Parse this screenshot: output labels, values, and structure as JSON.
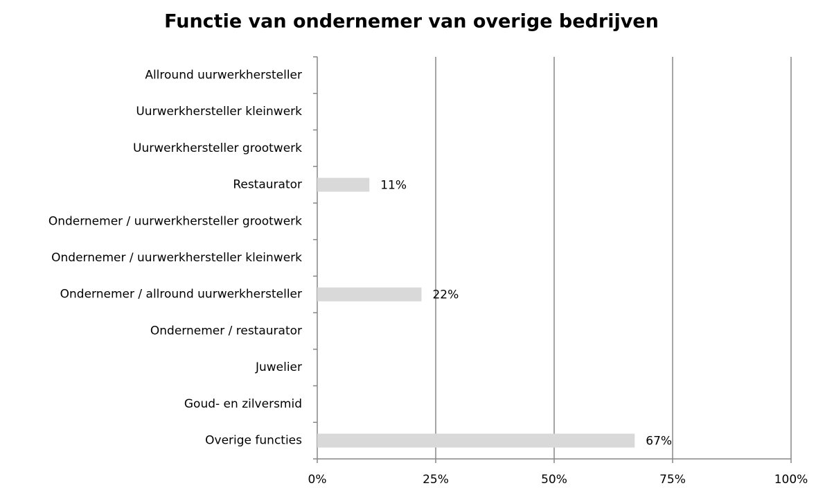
{
  "chart_data": {
    "type": "hbar",
    "title": "Functie van ondernemer van overige bedrijven",
    "categories": [
      "Allround uurwerkhersteller",
      "Uurwerkhersteller kleinwerk",
      "Uurwerkhersteller grootwerk",
      "Restaurator",
      "Ondernemer / uurwerkhersteller grootwerk",
      "Ondernemer / uurwerkhersteller kleinwerk",
      "Ondernemer / allround uurwerkhersteller",
      "Ondernemer / restaurator",
      "Juwelier",
      "Goud- en zilversmid",
      "Overige functies"
    ],
    "values": [
      0,
      0,
      0,
      11,
      0,
      0,
      22,
      0,
      0,
      0,
      67
    ],
    "value_labels": [
      null,
      null,
      null,
      "11%",
      null,
      null,
      "22%",
      null,
      null,
      null,
      "67%"
    ],
    "color": "#d9d9d9",
    "xlim": [
      0,
      100
    ],
    "xticks": [
      {
        "value": 0,
        "label": "0%"
      },
      {
        "value": 25,
        "label": "25%"
      },
      {
        "value": 50,
        "label": "50%"
      },
      {
        "value": 75,
        "label": "75%"
      },
      {
        "value": 100,
        "label": "100%"
      }
    ],
    "grid": true
  }
}
